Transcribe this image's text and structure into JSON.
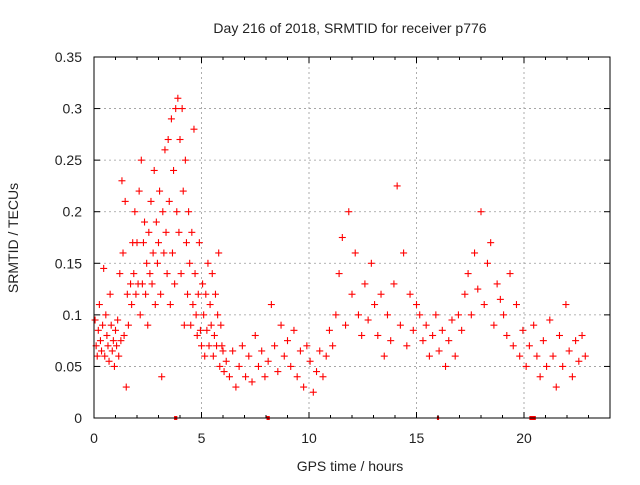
{
  "chart_data": {
    "type": "scatter",
    "title": "Day 216 of 2018, SRMTID for receiver p776",
    "xlabel": "GPS time / hours",
    "ylabel": "SRMTID / TECUs",
    "xlim": [
      0,
      24
    ],
    "ylim": [
      0,
      0.35
    ],
    "x_ticks": [
      0,
      5,
      10,
      15,
      20
    ],
    "x_tick_labels": [
      "0",
      "5",
      "10",
      "15",
      "20"
    ],
    "y_ticks": [
      0,
      0.05,
      0.1,
      0.15,
      0.2,
      0.25,
      0.3,
      0.35
    ],
    "y_tick_labels": [
      "0",
      "0.05",
      "0.1",
      "0.15",
      "0.2",
      "0.25",
      "0.3",
      "0.35"
    ],
    "grid": true,
    "marker": "+",
    "color": "#ff0000",
    "series": [
      {
        "name": "SRMTID",
        "points": [
          [
            0.05,
            0.095
          ],
          [
            0.1,
            0.07
          ],
          [
            0.15,
            0.06
          ],
          [
            0.2,
            0.085
          ],
          [
            0.25,
            0.11
          ],
          [
            0.3,
            0.075
          ],
          [
            0.35,
            0.065
          ],
          [
            0.4,
            0.09
          ],
          [
            0.45,
            0.145
          ],
          [
            0.5,
            0.06
          ],
          [
            0.55,
            0.1
          ],
          [
            0.6,
            0.08
          ],
          [
            0.65,
            0.07
          ],
          [
            0.7,
            0.055
          ],
          [
            0.75,
            0.12
          ],
          [
            0.8,
            0.09
          ],
          [
            0.85,
            0.065
          ],
          [
            0.9,
            0.075
          ],
          [
            0.95,
            0.05
          ],
          [
            1.0,
            0.085
          ],
          [
            1.05,
            0.07
          ],
          [
            1.1,
            0.095
          ],
          [
            1.15,
            0.06
          ],
          [
            1.2,
            0.14
          ],
          [
            1.25,
            0.075
          ],
          [
            1.3,
            0.23
          ],
          [
            1.35,
            0.16
          ],
          [
            1.4,
            0.08
          ],
          [
            1.45,
            0.21
          ],
          [
            1.5,
            0.03
          ],
          [
            1.55,
            0.12
          ],
          [
            1.6,
            0.09
          ],
          [
            1.7,
            0.13
          ],
          [
            1.75,
            0.11
          ],
          [
            1.8,
            0.17
          ],
          [
            1.85,
            0.14
          ],
          [
            1.9,
            0.2
          ],
          [
            1.95,
            0.12
          ],
          [
            2.0,
            0.17
          ],
          [
            2.05,
            0.13
          ],
          [
            2.1,
            0.22
          ],
          [
            2.15,
            0.1
          ],
          [
            2.2,
            0.25
          ],
          [
            2.25,
            0.13
          ],
          [
            2.3,
            0.17
          ],
          [
            2.35,
            0.19
          ],
          [
            2.4,
            0.12
          ],
          [
            2.45,
            0.15
          ],
          [
            2.5,
            0.09
          ],
          [
            2.55,
            0.18
          ],
          [
            2.6,
            0.14
          ],
          [
            2.65,
            0.21
          ],
          [
            2.7,
            0.13
          ],
          [
            2.75,
            0.16
          ],
          [
            2.8,
            0.24
          ],
          [
            2.85,
            0.11
          ],
          [
            2.9,
            0.19
          ],
          [
            2.95,
            0.15
          ],
          [
            3.0,
            0.17
          ],
          [
            3.05,
            0.22
          ],
          [
            3.1,
            0.12
          ],
          [
            3.15,
            0.04
          ],
          [
            3.2,
            0.2
          ],
          [
            3.25,
            0.16
          ],
          [
            3.3,
            0.26
          ],
          [
            3.35,
            0.18
          ],
          [
            3.4,
            0.14
          ],
          [
            3.45,
            0.27
          ],
          [
            3.5,
            0.21
          ],
          [
            3.55,
            0.11
          ],
          [
            3.6,
            0.29
          ],
          [
            3.65,
            0.16
          ],
          [
            3.7,
            0.24
          ],
          [
            3.75,
            0.13
          ],
          [
            3.8,
            0.3
          ],
          [
            3.85,
            0.2
          ],
          [
            3.9,
            0.31
          ],
          [
            3.95,
            0.18
          ],
          [
            4.0,
            0.27
          ],
          [
            4.05,
            0.14
          ],
          [
            4.1,
            0.3
          ],
          [
            4.15,
            0.22
          ],
          [
            4.2,
            0.09
          ],
          [
            4.25,
            0.25
          ],
          [
            4.3,
            0.17
          ],
          [
            4.35,
            0.12
          ],
          [
            4.4,
            0.2
          ],
          [
            4.45,
            0.15
          ],
          [
            4.5,
            0.09
          ],
          [
            4.55,
            0.18
          ],
          [
            4.6,
            0.11
          ],
          [
            4.65,
            0.28
          ],
          [
            4.7,
            0.14
          ],
          [
            4.75,
            0.1
          ],
          [
            4.8,
            0.08
          ],
          [
            4.85,
            0.12
          ],
          [
            4.9,
            0.17
          ],
          [
            4.95,
            0.085
          ],
          [
            5.0,
            0.07
          ],
          [
            5.05,
            0.13
          ],
          [
            5.1,
            0.1
          ],
          [
            5.15,
            0.06
          ],
          [
            5.2,
            0.12
          ],
          [
            5.25,
            0.085
          ],
          [
            5.3,
            0.15
          ],
          [
            5.35,
            0.07
          ],
          [
            5.4,
            0.11
          ],
          [
            5.45,
            0.09
          ],
          [
            5.5,
            0.14
          ],
          [
            5.55,
            0.06
          ],
          [
            5.6,
            0.08
          ],
          [
            5.65,
            0.12
          ],
          [
            5.7,
            0.07
          ],
          [
            5.75,
            0.1
          ],
          [
            5.8,
            0.16
          ],
          [
            5.85,
            0.05
          ],
          [
            5.9,
            0.09
          ],
          [
            5.95,
            0.07
          ],
          [
            6.0,
            0.065
          ],
          [
            6.05,
            0.045
          ],
          [
            6.15,
            0.055
          ],
          [
            6.3,
            0.04
          ],
          [
            6.45,
            0.065
          ],
          [
            6.6,
            0.03
          ],
          [
            6.75,
            0.05
          ],
          [
            6.9,
            0.07
          ],
          [
            7.05,
            0.04
          ],
          [
            7.2,
            0.06
          ],
          [
            7.35,
            0.035
          ],
          [
            7.5,
            0.08
          ],
          [
            7.65,
            0.05
          ],
          [
            7.8,
            0.065
          ],
          [
            7.95,
            0.04
          ],
          [
            8.1,
            0.055
          ],
          [
            8.25,
            0.11
          ],
          [
            8.4,
            0.07
          ],
          [
            8.55,
            0.045
          ],
          [
            8.7,
            0.09
          ],
          [
            8.85,
            0.06
          ],
          [
            9.0,
            0.075
          ],
          [
            9.15,
            0.05
          ],
          [
            9.3,
            0.085
          ],
          [
            9.45,
            0.04
          ],
          [
            9.6,
            0.065
          ],
          [
            9.75,
            0.03
          ],
          [
            9.9,
            0.07
          ],
          [
            10.05,
            0.055
          ],
          [
            10.2,
            0.025
          ],
          [
            10.35,
            0.045
          ],
          [
            10.5,
            0.065
          ],
          [
            10.65,
            0.04
          ],
          [
            10.8,
            0.06
          ],
          [
            10.95,
            0.085
          ],
          [
            11.1,
            0.07
          ],
          [
            11.25,
            0.1
          ],
          [
            11.4,
            0.14
          ],
          [
            11.55,
            0.175
          ],
          [
            11.7,
            0.09
          ],
          [
            11.85,
            0.2
          ],
          [
            12.0,
            0.12
          ],
          [
            12.15,
            0.16
          ],
          [
            12.3,
            0.1
          ],
          [
            12.45,
            0.08
          ],
          [
            12.6,
            0.13
          ],
          [
            12.75,
            0.095
          ],
          [
            12.9,
            0.15
          ],
          [
            13.05,
            0.11
          ],
          [
            13.2,
            0.08
          ],
          [
            13.35,
            0.12
          ],
          [
            13.5,
            0.06
          ],
          [
            13.65,
            0.1
          ],
          [
            13.8,
            0.075
          ],
          [
            13.95,
            0.13
          ],
          [
            14.1,
            0.225
          ],
          [
            14.25,
            0.09
          ],
          [
            14.4,
            0.16
          ],
          [
            14.55,
            0.07
          ],
          [
            14.7,
            0.12
          ],
          [
            14.85,
            0.085
          ],
          [
            15.0,
            0.11
          ],
          [
            15.15,
            0.1
          ],
          [
            15.3,
            0.075
          ],
          [
            15.45,
            0.09
          ],
          [
            15.6,
            0.06
          ],
          [
            15.75,
            0.08
          ],
          [
            15.9,
            0.1
          ],
          [
            16.05,
            0.065
          ],
          [
            16.2,
            0.085
          ],
          [
            16.35,
            0.05
          ],
          [
            16.5,
            0.075
          ],
          [
            16.65,
            0.095
          ],
          [
            16.8,
            0.06
          ],
          [
            16.95,
            0.1
          ],
          [
            17.1,
            0.085
          ],
          [
            17.25,
            0.12
          ],
          [
            17.4,
            0.14
          ],
          [
            17.55,
            0.1
          ],
          [
            17.7,
            0.16
          ],
          [
            17.85,
            0.125
          ],
          [
            18.0,
            0.2
          ],
          [
            18.15,
            0.11
          ],
          [
            18.3,
            0.15
          ],
          [
            18.45,
            0.17
          ],
          [
            18.6,
            0.09
          ],
          [
            18.75,
            0.13
          ],
          [
            18.9,
            0.115
          ],
          [
            19.05,
            0.1
          ],
          [
            19.2,
            0.08
          ],
          [
            19.35,
            0.14
          ],
          [
            19.5,
            0.07
          ],
          [
            19.65,
            0.11
          ],
          [
            19.8,
            0.06
          ],
          [
            19.95,
            0.085
          ],
          [
            20.1,
            0.05
          ],
          [
            20.25,
            0.07
          ],
          [
            20.45,
            0.09
          ],
          [
            20.6,
            0.06
          ],
          [
            20.75,
            0.04
          ],
          [
            20.9,
            0.075
          ],
          [
            21.05,
            0.05
          ],
          [
            21.2,
            0.095
          ],
          [
            21.35,
            0.06
          ],
          [
            21.5,
            0.03
          ],
          [
            21.65,
            0.08
          ],
          [
            21.8,
            0.05
          ],
          [
            21.95,
            0.11
          ],
          [
            22.1,
            0.065
          ],
          [
            22.25,
            0.04
          ],
          [
            22.4,
            0.075
          ],
          [
            22.55,
            0.055
          ],
          [
            22.7,
            0.08
          ],
          [
            22.85,
            0.06
          ]
        ]
      }
    ],
    "axis_markers": [
      {
        "x": 3.8,
        "width": 0.15
      },
      {
        "x": 8.1,
        "width": 0.15
      },
      {
        "x": 16.0,
        "width": 0.1
      },
      {
        "x": 20.4,
        "width": 0.3
      }
    ]
  }
}
